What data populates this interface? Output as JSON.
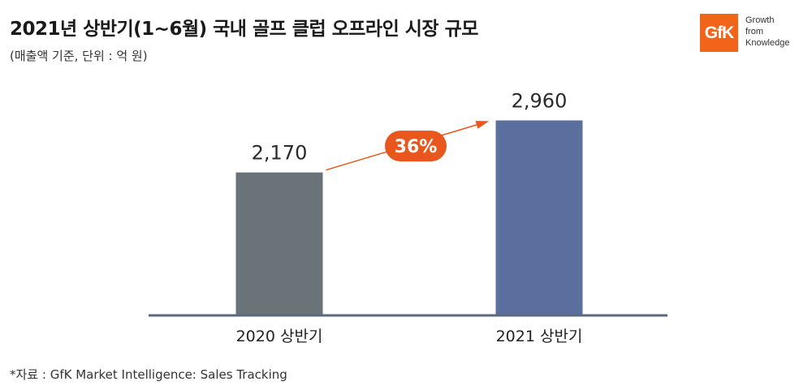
{
  "header": {
    "title": "2021년 상반기(1~6월) 국내 골프 클럽 오프라인 시장 규모",
    "subtitle": "(매출액 기준, 단위 : 억 원)"
  },
  "logo": {
    "mark": "GfK",
    "tagline": [
      "Growth",
      "from",
      "Knowledge"
    ]
  },
  "chart_data": {
    "type": "bar",
    "categories": [
      "2020 상반기",
      "2021 상반기"
    ],
    "values": [
      2170,
      2960
    ],
    "value_labels": [
      "2,170",
      "2,960"
    ],
    "bar_colors": [
      "#6a7377",
      "#5b6f9e"
    ],
    "ylim": [
      0,
      3200
    ],
    "grid": false,
    "annotation": {
      "text": "36%",
      "color": "#e8571e",
      "from_category": 0,
      "to_category": 1
    }
  },
  "footer": {
    "source": "*자료 : GfK Market Intelligence: Sales Tracking"
  }
}
